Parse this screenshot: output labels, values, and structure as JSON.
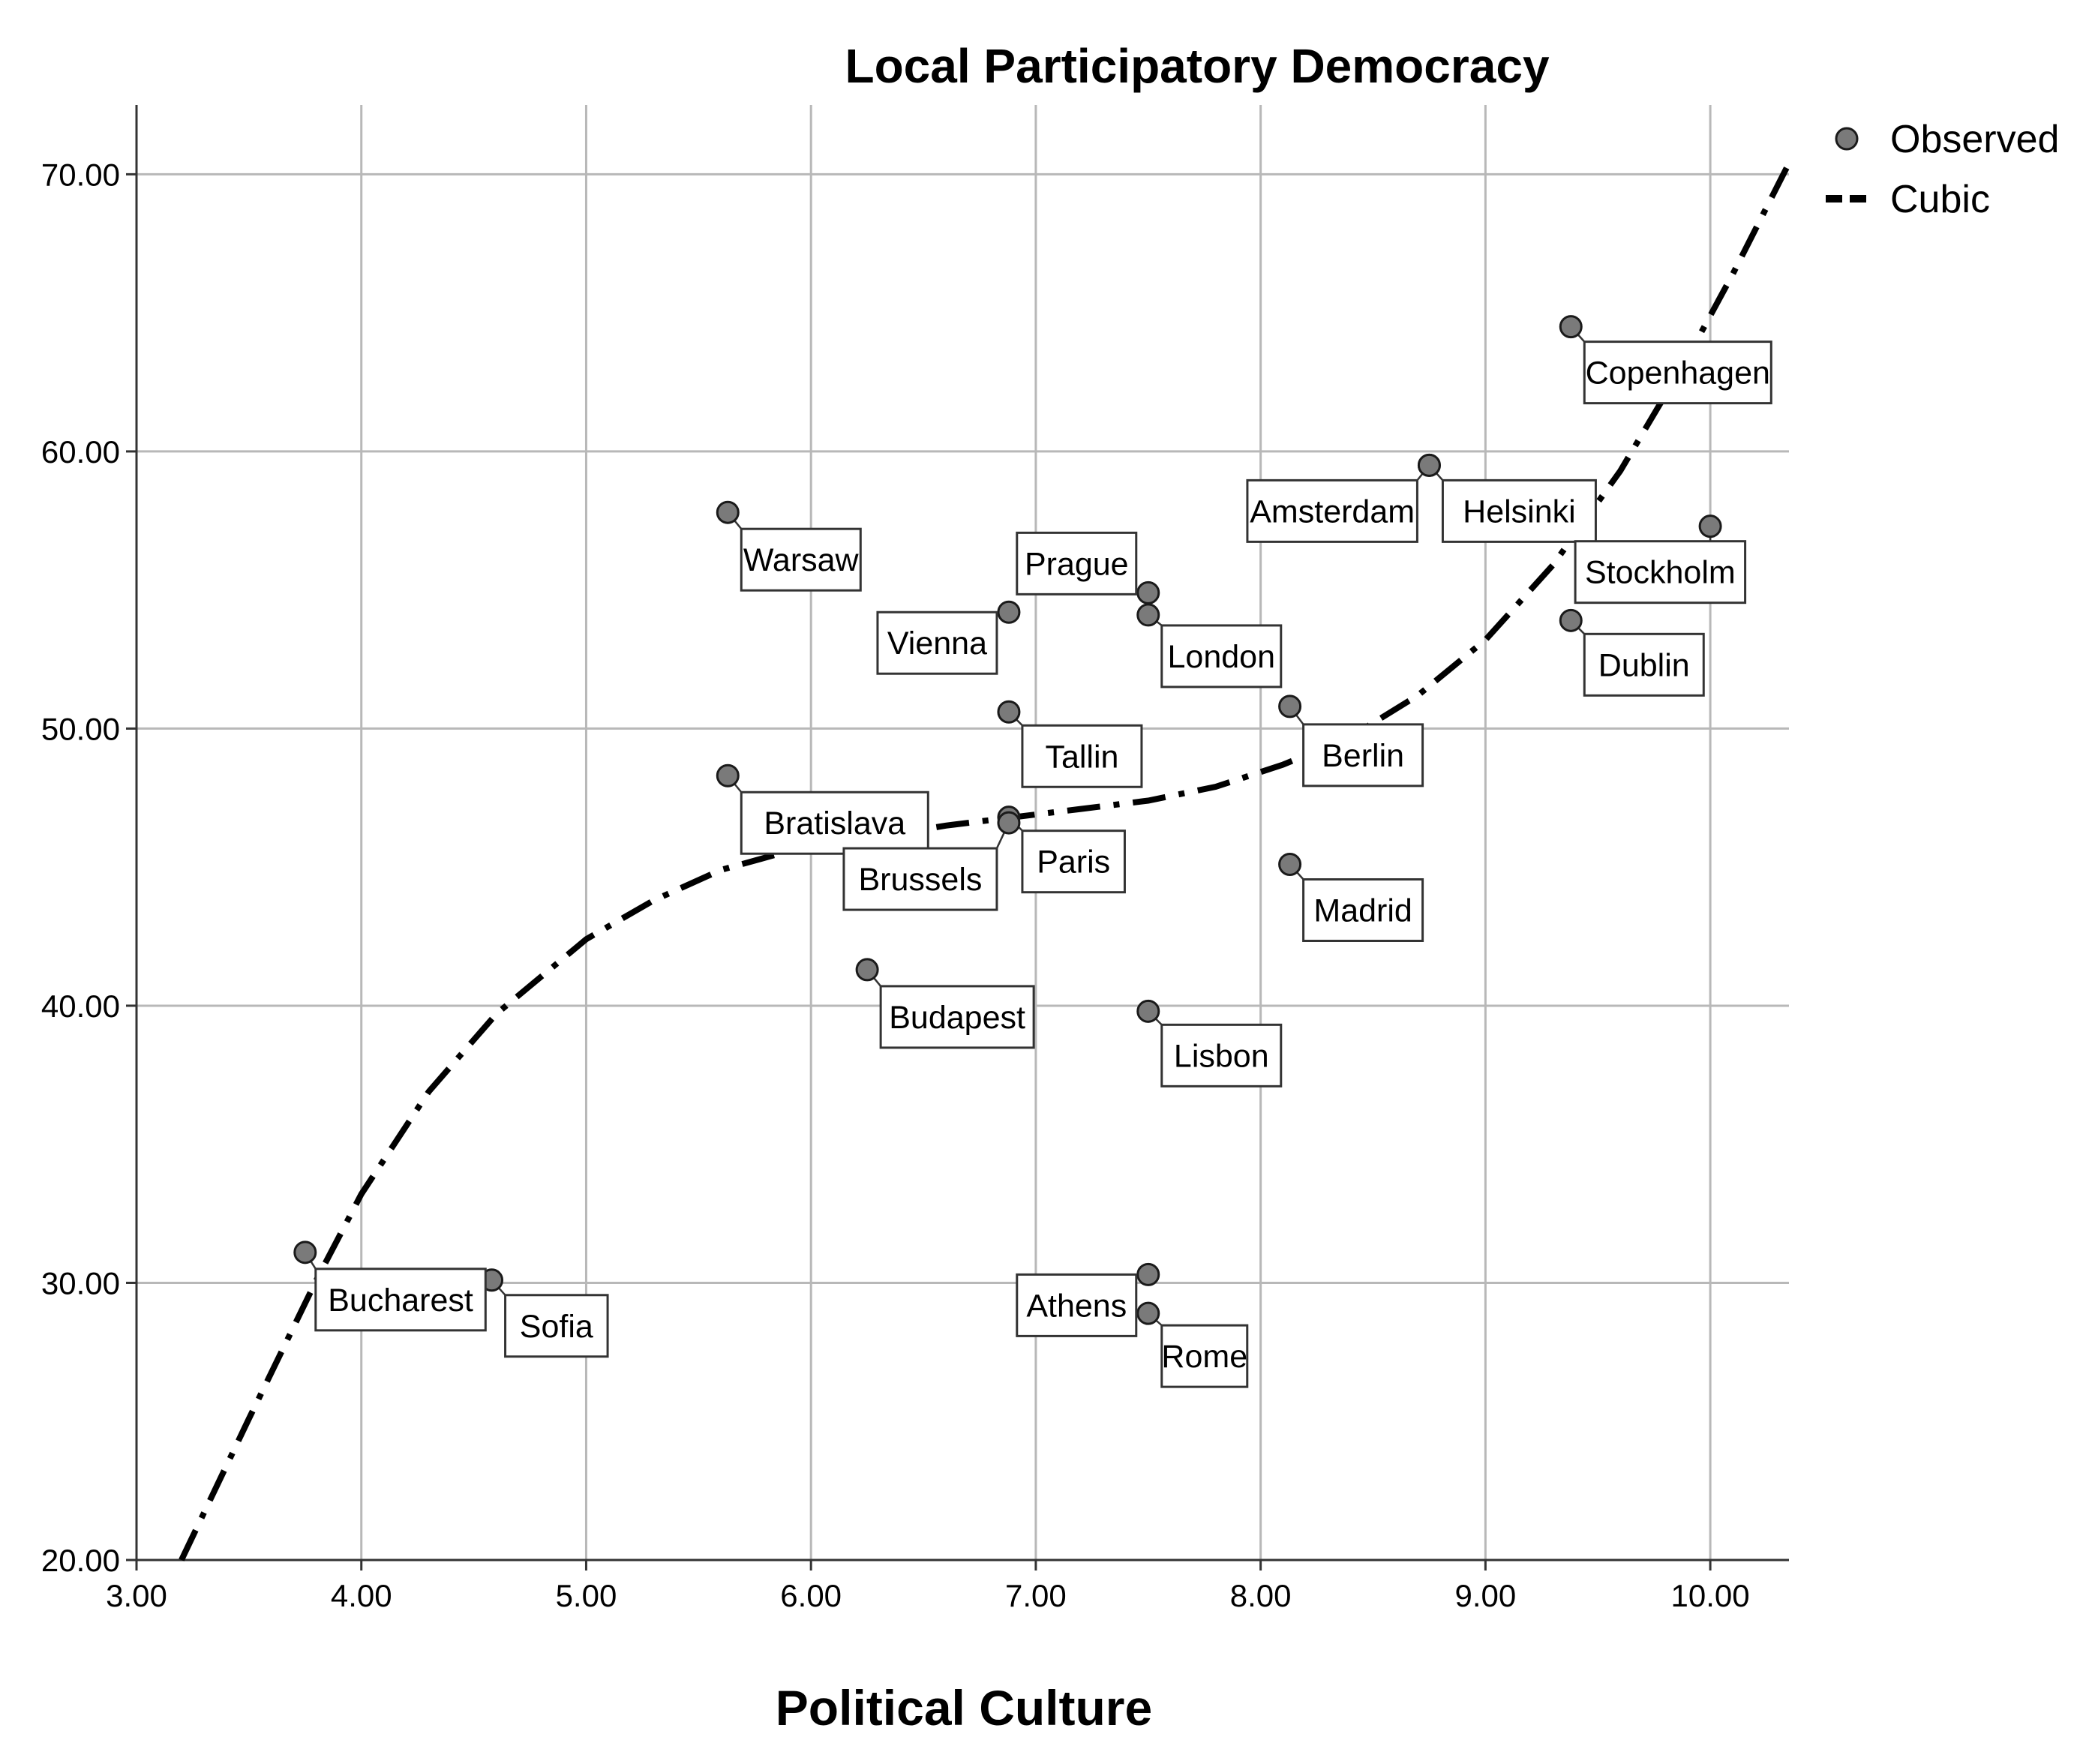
{
  "chart_data": {
    "type": "scatter",
    "title": "Local Participatory Democracy",
    "xlabel": "Political Culture",
    "ylabel": "",
    "xlim": [
      3.0,
      10.35
    ],
    "ylim": [
      20.0,
      72.5
    ],
    "xticks": [
      3,
      4,
      5,
      6,
      7,
      8,
      9,
      10
    ],
    "xtick_labels": [
      "3.00",
      "4.00",
      "5.00",
      "6.00",
      "7.00",
      "8.00",
      "9.00",
      "10.00"
    ],
    "yticks": [
      20,
      30,
      40,
      50,
      60,
      70
    ],
    "ytick_labels": [
      "20.00",
      "30.00",
      "40.00",
      "50.00",
      "60.00",
      "70.00"
    ],
    "grid": true,
    "legend": {
      "position": "top-right outside",
      "entries": [
        {
          "label": "Observed",
          "marker": "circle"
        },
        {
          "label": "Cubic",
          "marker": "dashed-line"
        }
      ]
    },
    "colors": {
      "point_fill": "#7a7a7a",
      "point_edge": "#1a1a1a",
      "fit_line": "#000000",
      "grid": "#b8b8b8"
    },
    "series": [
      {
        "name": "Observed",
        "kind": "scatter",
        "points": [
          {
            "label": "Bucharest",
            "x": 3.75,
            "y": 31.1
          },
          {
            "label": "Sofia",
            "x": 4.58,
            "y": 30.1
          },
          {
            "label": "Warsaw",
            "x": 5.63,
            "y": 57.8
          },
          {
            "label": "Bratislava",
            "x": 5.63,
            "y": 48.3
          },
          {
            "label": "Budapest",
            "x": 6.25,
            "y": 41.3
          },
          {
            "label": "Vienna",
            "x": 6.88,
            "y": 54.2
          },
          {
            "label": "Tallin",
            "x": 6.88,
            "y": 50.6
          },
          {
            "label": "Paris",
            "x": 6.88,
            "y": 46.8
          },
          {
            "label": "Brussels",
            "x": 6.88,
            "y": 46.6
          },
          {
            "label": "Prague",
            "x": 7.5,
            "y": 54.9
          },
          {
            "label": "London",
            "x": 7.5,
            "y": 54.1
          },
          {
            "label": "Lisbon",
            "x": 7.5,
            "y": 39.8
          },
          {
            "label": "Athens",
            "x": 7.5,
            "y": 30.3
          },
          {
            "label": "Rome",
            "x": 7.5,
            "y": 28.9
          },
          {
            "label": "Berlin",
            "x": 8.13,
            "y": 50.8
          },
          {
            "label": "Madrid",
            "x": 8.13,
            "y": 45.1
          },
          {
            "label": "Amsterdam",
            "x": 8.75,
            "y": 59.5
          },
          {
            "label": "Helsinki",
            "x": 8.75,
            "y": 59.5
          },
          {
            "label": "Copenhagen",
            "x": 9.38,
            "y": 64.5
          },
          {
            "label": "Dublin",
            "x": 9.38,
            "y": 53.9
          },
          {
            "label": "Stockholm",
            "x": 10.0,
            "y": 57.3
          }
        ]
      },
      {
        "name": "Cubic",
        "kind": "line",
        "x": [
          3.2,
          3.5,
          3.8,
          4.0,
          4.3,
          4.6,
          5.0,
          5.3,
          5.6,
          6.0,
          6.3,
          6.6,
          6.9,
          7.2,
          7.5,
          7.8,
          8.1,
          8.4,
          8.7,
          9.0,
          9.3,
          9.6,
          9.9,
          10.1,
          10.35
        ],
        "y": [
          20.0,
          25.1,
          30.1,
          33.2,
          36.9,
          39.7,
          42.4,
          43.8,
          44.9,
          45.8,
          46.1,
          46.5,
          46.8,
          47.1,
          47.4,
          47.9,
          48.7,
          49.7,
          51.2,
          53.2,
          55.9,
          59.3,
          63.4,
          66.4,
          70.4
        ]
      }
    ]
  }
}
